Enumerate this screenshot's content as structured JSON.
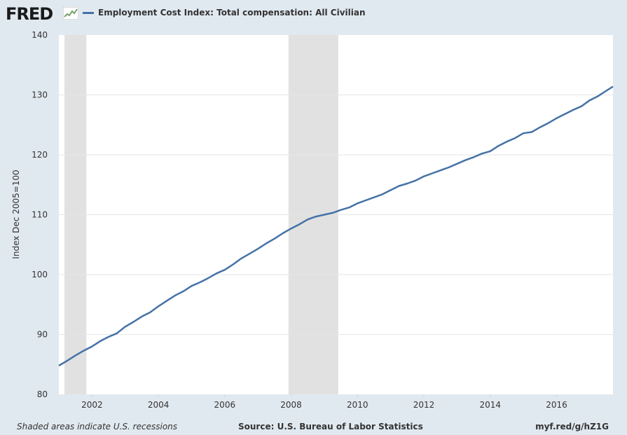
{
  "header": {
    "logo_text": "FRED",
    "series_title": "Employment Cost Index: Total compensation: All Civilian"
  },
  "footer": {
    "note": "Shaded areas indicate U.S. recessions",
    "source": "Source: U.S. Bureau of Labor Statistics",
    "link": "myf.red/g/hZ1G"
  },
  "colors": {
    "line": "#4572a7",
    "recession": "#e1e1e1",
    "background": "#e1e9f0",
    "plot": "#ffffff",
    "grid": "#e6e6e6"
  },
  "chart_data": {
    "type": "line",
    "title": "",
    "xlabel": "",
    "ylabel": "Index Dec 2005=100",
    "xlim": [
      2001.0,
      2017.7
    ],
    "ylim": [
      80,
      140
    ],
    "yticks": [
      80,
      90,
      100,
      110,
      120,
      130,
      140
    ],
    "xticks": [
      2002,
      2004,
      2006,
      2008,
      2010,
      2012,
      2014,
      2016
    ],
    "recessions": [
      [
        2001.17,
        2001.83
      ],
      [
        2007.92,
        2009.42
      ]
    ],
    "grid": true,
    "series": [
      {
        "name": "Employment Cost Index: Total compensation: All Civilian",
        "x": [
          2001.0,
          2001.25,
          2001.5,
          2001.75,
          2002.0,
          2002.25,
          2002.5,
          2002.75,
          2003.0,
          2003.25,
          2003.5,
          2003.75,
          2004.0,
          2004.25,
          2004.5,
          2004.75,
          2005.0,
          2005.25,
          2005.5,
          2005.75,
          2006.0,
          2006.25,
          2006.5,
          2006.75,
          2007.0,
          2007.25,
          2007.5,
          2007.75,
          2008.0,
          2008.25,
          2008.5,
          2008.75,
          2009.0,
          2009.25,
          2009.5,
          2009.75,
          2010.0,
          2010.25,
          2010.5,
          2010.75,
          2011.0,
          2011.25,
          2011.5,
          2011.75,
          2012.0,
          2012.25,
          2012.5,
          2012.75,
          2013.0,
          2013.25,
          2013.5,
          2013.75,
          2014.0,
          2014.25,
          2014.5,
          2014.75,
          2015.0,
          2015.25,
          2015.5,
          2015.75,
          2016.0,
          2016.25,
          2016.5,
          2016.75,
          2017.0,
          2017.25,
          2017.5,
          2017.7
        ],
        "values": [
          84.8,
          85.6,
          86.5,
          87.3,
          88.0,
          88.9,
          89.6,
          90.2,
          91.3,
          92.1,
          93.0,
          93.7,
          94.7,
          95.6,
          96.5,
          97.2,
          98.1,
          98.7,
          99.4,
          100.2,
          100.8,
          101.7,
          102.7,
          103.5,
          104.3,
          105.2,
          106.0,
          106.9,
          107.7,
          108.4,
          109.2,
          109.7,
          110.0,
          110.3,
          110.8,
          111.2,
          111.9,
          112.4,
          112.9,
          113.4,
          114.1,
          114.8,
          115.2,
          115.7,
          116.4,
          116.9,
          117.4,
          117.9,
          118.5,
          119.1,
          119.6,
          120.2,
          120.6,
          121.5,
          122.2,
          122.8,
          123.6,
          123.8,
          124.6,
          125.3,
          126.1,
          126.8,
          127.5,
          128.1,
          129.1,
          129.8,
          130.7,
          131.4
        ]
      }
    ]
  }
}
